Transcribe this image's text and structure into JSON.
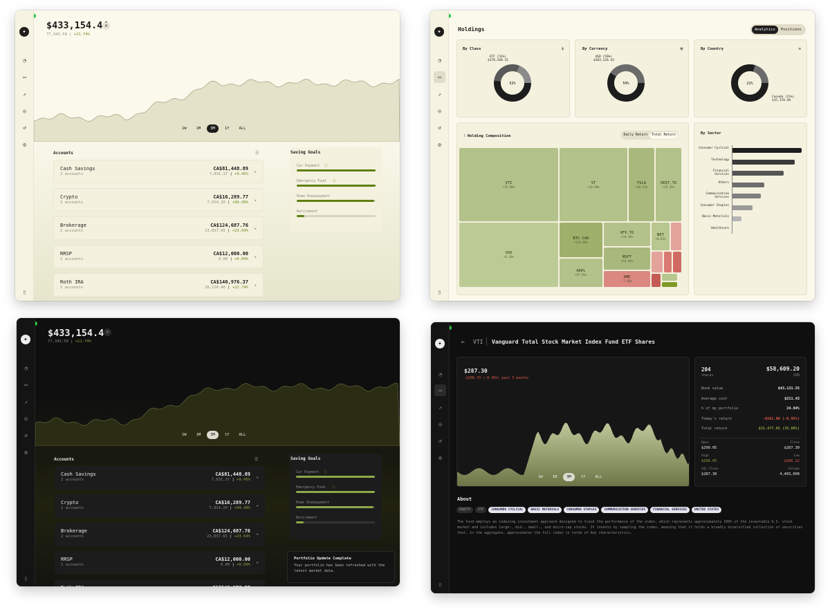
{
  "colors": {
    "accent": "#6a8a1e",
    "positive": "#8aa840",
    "negative": "#e05a4b",
    "light_bg": "#fbf9ec",
    "dark_bg": "#0f0f0f"
  },
  "nav_icons": [
    "gauge-icon",
    "wallet-icon",
    "chart-icon",
    "coins-icon",
    "history-icon",
    "settings-icon"
  ],
  "dashboard": {
    "total": "$433,154.44",
    "change": "77,343.59",
    "change_pct": "+21.74%",
    "timeframes": [
      "1W",
      "1M",
      "3M",
      "1Y",
      "ALL"
    ],
    "active_timeframe": "3M",
    "accounts_title": "Accounts",
    "goals_title": "Saving Goals",
    "accounts": [
      {
        "name": "Cash Savings",
        "sub": "2 accounts",
        "value": "CA$81,448.89",
        "gain": "7,031.37",
        "pct": "+9.45%"
      },
      {
        "name": "Crypto",
        "sub": "1 accounts",
        "value": "CA$16,289.77",
        "gain": "7,914.20",
        "pct": "+94.49%"
      },
      {
        "name": "Brokerage",
        "sub": "2 accounts",
        "value": "CA$124,687.76",
        "gain": "23,837.65",
        "pct": "+23.64%"
      },
      {
        "name": "RRSP",
        "sub": "1 accounts",
        "value": "CA$12,000.00",
        "gain": "0.00",
        "pct": "+0.00%"
      },
      {
        "name": "Roth IRA",
        "sub": "2 accounts",
        "value": "CA$140,976.37",
        "gain": "26,116.40",
        "pct": "+22.74%"
      }
    ],
    "goals": [
      {
        "name": "Car Payment",
        "progress": 1.0
      },
      {
        "name": "Emergency Fund",
        "progress": 1.0
      },
      {
        "name": "Home Downpayment",
        "progress": 0.98
      },
      {
        "name": "Retirement",
        "progress": 0.1
      }
    ],
    "toast_title": "Portfolio Update Complete",
    "toast_body": "Your portfolio has been refreshed with the latest market data."
  },
  "holdings": {
    "title": "Holdings",
    "tabs": [
      "Analytics",
      "Positions"
    ],
    "active_tab": "Analytics",
    "by_class": {
      "title": "By Class",
      "label": "ETF (52%)",
      "value": "$178,160.32",
      "center": "52%"
    },
    "by_currency": {
      "title": "By Currency",
      "label": "USD (59%)",
      "value": "$203,126.43",
      "center": "59%"
    },
    "by_country": {
      "title": "By Country",
      "label": "Canada (21%)",
      "value": "$15,370.48",
      "center": "21%"
    },
    "composition_title": "Holding Composition",
    "comp_tabs": [
      "Daily Return",
      "Total Return"
    ],
    "tiles": [
      {
        "sym": "VTI",
        "ret": "+35.88%"
      },
      {
        "sym": "VT",
        "ret": "+18.98%"
      },
      {
        "sym": "TSLA",
        "ret": "+60.52%"
      },
      {
        "sym": "XEQT.TO",
        "ret": "+24.45%"
      },
      {
        "sym": "VOO",
        "ret": "+6.39%"
      },
      {
        "sym": "BTC-CAD",
        "ret": "+144.09%"
      },
      {
        "sym": "VFV.TO",
        "ret": "+34.16%"
      },
      {
        "sym": "NET",
        "ret": "+8.83%"
      },
      {
        "sym": "MSFT",
        "ret": "+64.46%"
      },
      {
        "sym": "AAPL",
        "ret": "+97.91%"
      },
      {
        "sym": "AMD",
        "ret": "-7.69%"
      }
    ],
    "sector_title": "By Sector",
    "sectors": [
      {
        "name": "Consumer Cyclical",
        "value": 1.0
      },
      {
        "name": "Technology",
        "value": 0.9
      },
      {
        "name": "Financial Services",
        "value": 0.74
      },
      {
        "name": "Others",
        "value": 0.46
      },
      {
        "name": "Communication Services",
        "value": 0.41
      },
      {
        "name": "Consumer Staples",
        "value": 0.29
      },
      {
        "name": "Basic Materials",
        "value": 0.13
      },
      {
        "name": "Healthcare",
        "value": 0.0
      }
    ]
  },
  "detail": {
    "symbol": "VTI",
    "name": "Vanguard Total Stock Market Index Fund ETF Shares",
    "price": "$287.30",
    "change": "-$298.79 (-0.36%) past 3 months",
    "shares": "204",
    "shares_label": "shares",
    "market_value": "$58,609.20",
    "currency": "USD",
    "rows": [
      {
        "k": "Book value",
        "v": "$43,131.55"
      },
      {
        "k": "Average cost",
        "v": "$211.43"
      },
      {
        "k": "% of my portfolio",
        "v": "24.04%"
      },
      {
        "k": "Today's return",
        "v": "-$561.00 (-0.95%)"
      },
      {
        "k": "Total return",
        "v": "$15,477.65 (35.88%)"
      }
    ],
    "open_label": "Open",
    "open": "$290.05",
    "close_label": "Close",
    "close": "$287.30",
    "high_label": "High",
    "high": "$290.05",
    "low_label": "Low",
    "low": "$286.22",
    "adj_label": "Adj Close",
    "adj": "$287.30",
    "vol_label": "Volume",
    "vol": "4,403,000",
    "about_title": "About",
    "tags": [
      "EQUITY",
      "ETF",
      "CONSUMER CYCLICAL",
      "BASIC MATERIALS",
      "CONSUMER STAPLES",
      "COMMUNICATION SERVICES",
      "FINANCIAL SERVICES",
      "UNITED STATES"
    ],
    "about": "The fund employs an indexing investment approach designed to track the performance of the index, which represents approximately 100% of the investable U.S. stock market and includes large-, mid-, small-, and micro-cap stocks. It invests by sampling the index, meaning that it holds a broadly diversified collection of securities that, in the aggregate, approximates the full index in terms of key characteristics."
  }
}
